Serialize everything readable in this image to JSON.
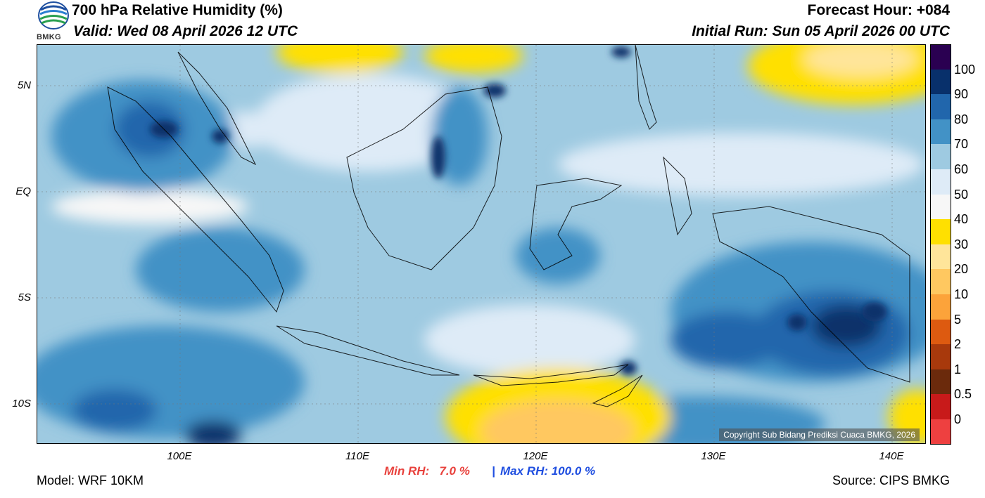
{
  "header": {
    "title": "700 hPa Relative Humidity (%)",
    "valid": "Valid: Wed 08 April 2026 12 UTC",
    "forecast_hour": "Forecast Hour: +084",
    "initial_run": "Initial Run: Sun 05 April 2026 00 UTC"
  },
  "logo": {
    "text": "BMKG",
    "icon": "bmkg-logo-icon"
  },
  "map": {
    "lon_range": [
      92,
      142
    ],
    "lat_range": [
      -12,
      7
    ],
    "x_ticks": [
      "100E",
      "110E",
      "120E",
      "130E",
      "140E"
    ],
    "y_ticks": [
      "5N",
      "EQ",
      "5S",
      "10S"
    ],
    "copyright": "Copyright Sub Bidang Prediksi Cuaca BMKG, 2026"
  },
  "colorbar": {
    "labels": [
      "100",
      "90",
      "80",
      "70",
      "60",
      "50",
      "40",
      "30",
      "20",
      "10",
      "5",
      "2",
      "1",
      "0.5",
      "0"
    ],
    "colors": [
      "#2a0051",
      "#08306b",
      "#2166ac",
      "#4292c6",
      "#9ecae1",
      "#deebf7",
      "#f7f7f7",
      "#ffe000",
      "#ffe59a",
      "#ffc860",
      "#fca33a",
      "#dd5a10",
      "#a8390c",
      "#6b2a0c",
      "#c81a1a",
      "#ee4040"
    ]
  },
  "stats": {
    "min_label": "Min RH:   7.0 %",
    "separator": "|",
    "max_label": "Max RH: 100.0 %",
    "min_color": "#e8413c",
    "max_color": "#1f4ee0"
  },
  "footer": {
    "model": "Model: WRF 10KM",
    "source": "Source: CIPS BMKG"
  }
}
